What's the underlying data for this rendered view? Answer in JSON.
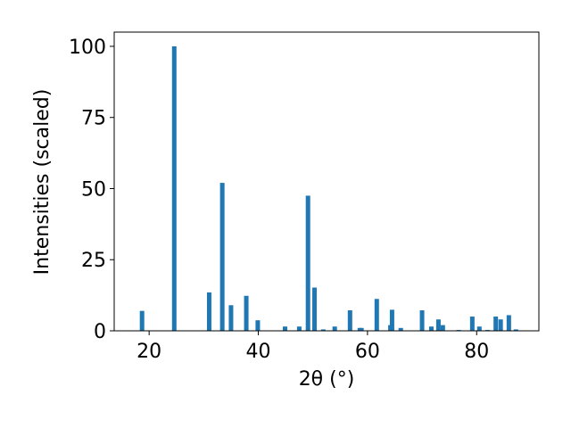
{
  "chart_data": {
    "type": "bar",
    "x": [
      18.7,
      24.6,
      31.0,
      33.4,
      35.0,
      37.8,
      39.9,
      44.9,
      47.5,
      49.1,
      50.3,
      51.9,
      54.0,
      56.8,
      58.6,
      58.9,
      61.7,
      64.2,
      64.5,
      66.1,
      70.0,
      71.7,
      73.0,
      73.8,
      76.7,
      79.2,
      80.5,
      82.0,
      83.5,
      84.4,
      85.9,
      87.2
    ],
    "values": [
      7,
      100,
      13.5,
      52,
      9,
      12.3,
      3.7,
      1.5,
      1.5,
      47.5,
      15.2,
      0.5,
      1.5,
      7.2,
      1,
      1,
      11.2,
      2,
      7.4,
      1,
      7.2,
      1.5,
      4,
      2,
      0.3,
      5,
      1.5,
      0.3,
      5,
      4,
      5.5,
      0.5
    ],
    "color": "#1f77b4",
    "x_label": "2θ (°)",
    "y_label": "Intensities (scaled)",
    "xlim": [
      13.6,
      91.4
    ],
    "ylim": [
      0,
      105
    ],
    "xticks": [
      20,
      40,
      60,
      80
    ],
    "yticks": [
      0,
      25,
      50,
      75,
      100
    ]
  }
}
